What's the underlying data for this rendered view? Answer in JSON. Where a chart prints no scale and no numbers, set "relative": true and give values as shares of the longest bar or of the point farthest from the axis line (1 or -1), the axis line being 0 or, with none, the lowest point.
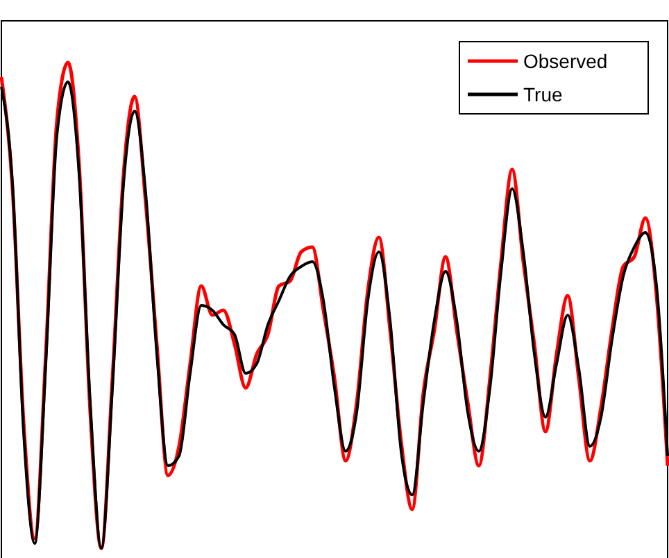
{
  "chart_data": {
    "type": "line",
    "relative": true,
    "legend": "top right",
    "grid": false,
    "tick_labels": false,
    "categories": [
      null,
      null,
      null,
      null,
      null,
      null,
      null,
      null,
      null,
      null,
      null,
      null,
      null,
      null,
      null,
      null,
      null,
      null,
      null,
      null,
      null,
      null,
      null,
      null,
      null,
      null,
      null,
      null,
      null,
      null,
      null,
      null,
      null,
      null,
      null,
      null,
      null,
      null,
      null,
      null,
      null,
      null,
      null,
      null,
      null,
      null,
      null,
      null,
      null,
      null,
      null,
      null,
      null,
      null,
      null,
      null,
      null,
      null,
      null,
      null,
      null
    ],
    "series": [
      {
        "name": "Observed",
        "color": "#ff0000",
        "values": [
          0.97,
          0.74,
          0.26,
          0.02,
          0.4,
          0.88,
          1.0,
          0.79,
          0.28,
          0.0,
          0.35,
          0.77,
          0.93,
          0.71,
          0.42,
          0.15,
          0.21,
          0.38,
          0.54,
          0.48,
          0.49,
          0.42,
          0.33,
          0.4,
          0.44,
          0.54,
          0.55,
          0.61,
          0.62,
          0.49,
          0.35,
          0.18,
          0.3,
          0.53,
          0.64,
          0.45,
          0.22,
          0.08,
          0.32,
          0.45,
          0.6,
          0.45,
          0.3,
          0.17,
          0.35,
          0.59,
          0.78,
          0.59,
          0.42,
          0.24,
          0.4,
          0.52,
          0.35,
          0.18,
          0.29,
          0.45,
          0.58,
          0.6,
          0.68,
          0.52,
          0.17
        ]
      },
      {
        "name": "True",
        "color": "#000000",
        "values": [
          0.95,
          0.75,
          0.24,
          0.01,
          0.38,
          0.85,
          0.96,
          0.77,
          0.3,
          0.0,
          0.33,
          0.75,
          0.9,
          0.73,
          0.4,
          0.17,
          0.19,
          0.36,
          0.5,
          0.49,
          0.46,
          0.44,
          0.36,
          0.38,
          0.46,
          0.51,
          0.56,
          0.58,
          0.59,
          0.51,
          0.33,
          0.2,
          0.28,
          0.51,
          0.61,
          0.47,
          0.2,
          0.11,
          0.3,
          0.47,
          0.57,
          0.47,
          0.28,
          0.2,
          0.33,
          0.57,
          0.74,
          0.61,
          0.4,
          0.27,
          0.38,
          0.48,
          0.37,
          0.21,
          0.27,
          0.43,
          0.56,
          0.62,
          0.65,
          0.54,
          0.19
        ]
      }
    ]
  }
}
